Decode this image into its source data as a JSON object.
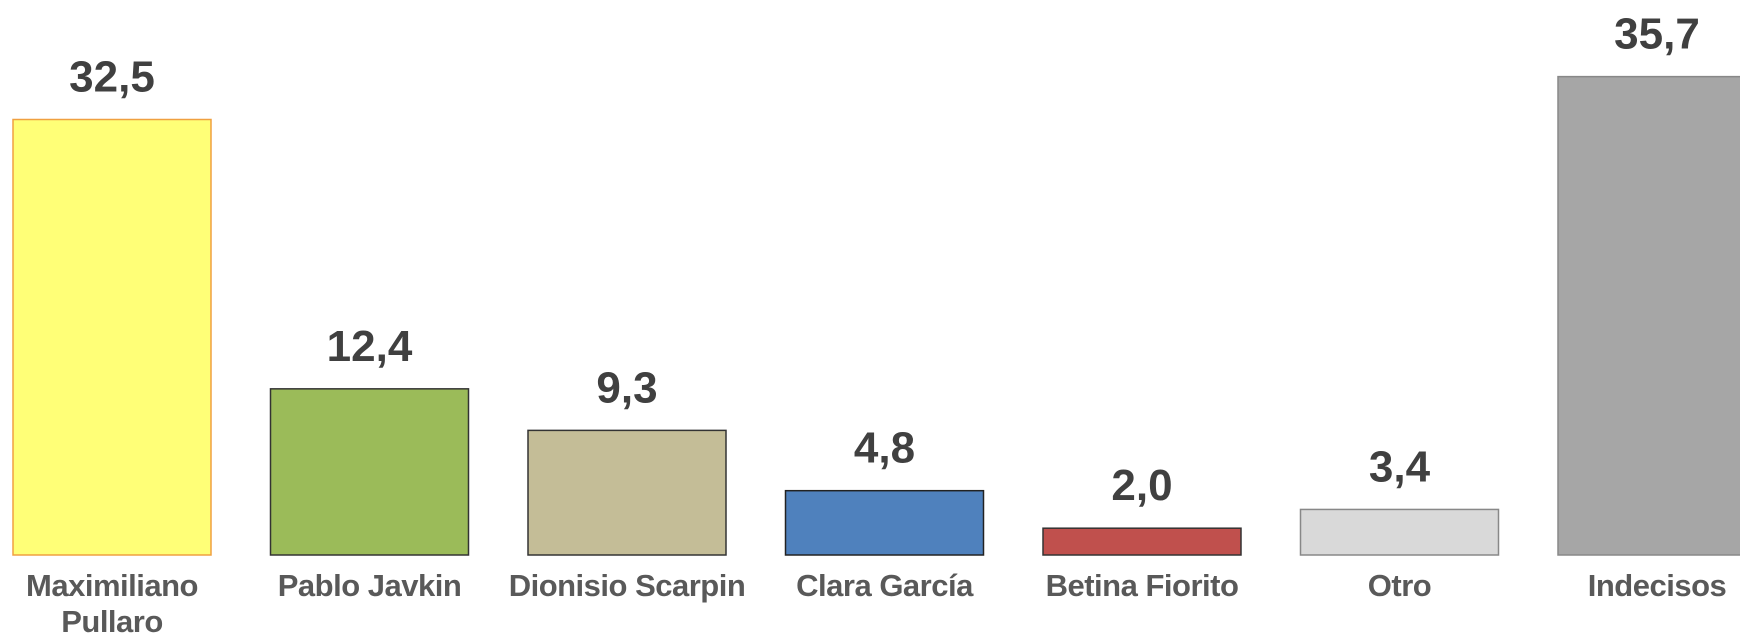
{
  "chart_data": {
    "type": "bar",
    "categories": [
      "Maximiliano Pullaro",
      "Pablo Javkin",
      "Dionisio Scarpin",
      "Clara García",
      "Betina Fiorito",
      "Otro",
      "Indecisos"
    ],
    "values": [
      32.5,
      12.4,
      9.3,
      4.8,
      2.0,
      3.4,
      35.7
    ],
    "value_labels": [
      "32,5",
      "12,4",
      "9,3",
      "4,8",
      "2,0",
      "3,4",
      "35,7"
    ],
    "colors": [
      "#ffff77",
      "#9bbb59",
      "#c4bd97",
      "#4f81bd",
      "#c0504d",
      "#d9d9d9",
      "#a6a6a6"
    ]
  }
}
